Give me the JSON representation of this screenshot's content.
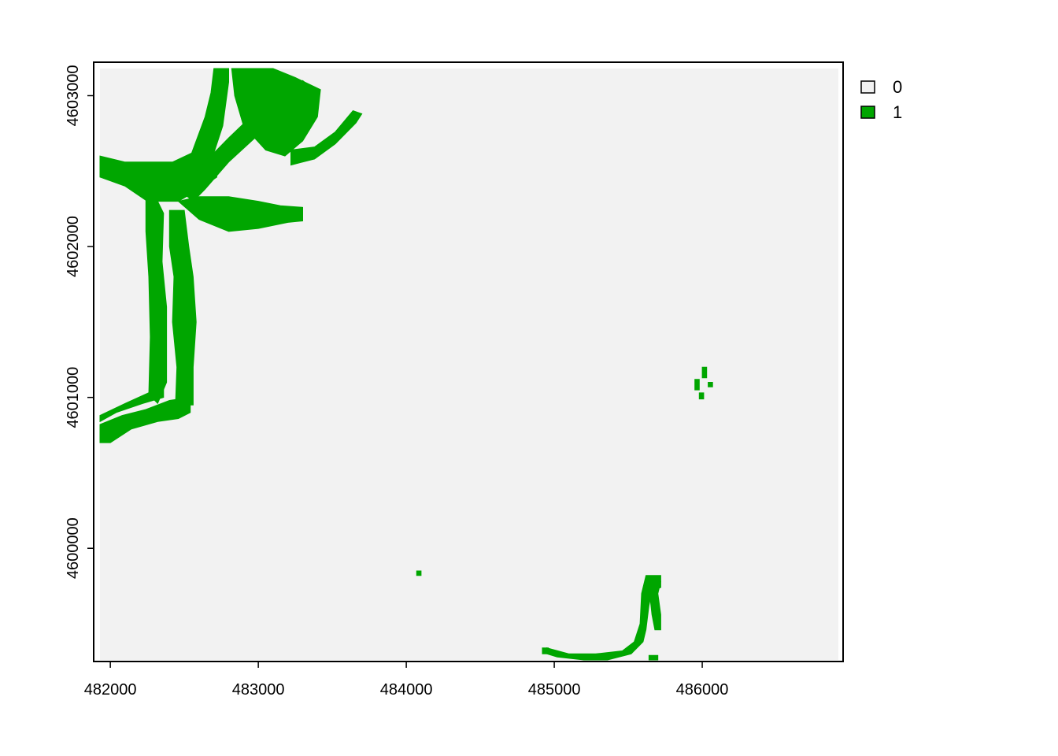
{
  "map": {
    "extent": {
      "xmin": 481930,
      "xmax": 486920,
      "ymin": 4599260,
      "ymax": 4603180
    },
    "cell_size": 20,
    "x_ticks": [
      {
        "value": 482000,
        "label": "482000"
      },
      {
        "value": 483000,
        "label": "483000"
      },
      {
        "value": 484000,
        "label": "484000"
      },
      {
        "value": 485000,
        "label": "485000"
      },
      {
        "value": 486000,
        "label": "486000"
      }
    ],
    "y_ticks": [
      {
        "value": 4600000,
        "label": "4600000"
      },
      {
        "value": 4601000,
        "label": "4601000"
      },
      {
        "value": 4602000,
        "label": "4602000"
      },
      {
        "value": 4603000,
        "label": "4603000"
      }
    ],
    "background_color": "#f2f2f2",
    "legend": {
      "position": "top-right",
      "items": [
        {
          "value": 0,
          "label": "0",
          "color": "#f2f2f2"
        },
        {
          "value": 1,
          "label": "1",
          "color": "#00a600"
        }
      ]
    },
    "class_1_color": "#00a600",
    "class_1_features": [
      {
        "name": "northern-branch-west",
        "polygon": [
          [
            481930,
            4602600
          ],
          [
            482100,
            4602560
          ],
          [
            482420,
            4602560
          ],
          [
            482550,
            4602620
          ],
          [
            482640,
            4602860
          ],
          [
            482680,
            4603020
          ],
          [
            482700,
            4603180
          ],
          [
            482800,
            4603180
          ],
          [
            482800,
            4603090
          ],
          [
            482760,
            4602800
          ],
          [
            482700,
            4602620
          ],
          [
            482720,
            4602460
          ],
          [
            482600,
            4602380
          ],
          [
            482460,
            4602300
          ],
          [
            482250,
            4602300
          ],
          [
            482100,
            4602400
          ],
          [
            481930,
            4602460
          ]
        ]
      },
      {
        "name": "northern-branch-center",
        "polygon": [
          [
            482460,
            4602380
          ],
          [
            482600,
            4602520
          ],
          [
            482800,
            4602720
          ],
          [
            482980,
            4602890
          ],
          [
            483150,
            4602990
          ],
          [
            483300,
            4603100
          ],
          [
            483400,
            4603020
          ],
          [
            483200,
            4602880
          ],
          [
            483000,
            4602740
          ],
          [
            482800,
            4602560
          ],
          [
            482640,
            4602380
          ],
          [
            482560,
            4602300
          ]
        ]
      },
      {
        "name": "northern-branch-east",
        "polygon": [
          [
            482820,
            4603180
          ],
          [
            483100,
            4603180
          ],
          [
            483250,
            4603120
          ],
          [
            483420,
            4603040
          ],
          [
            483400,
            4602860
          ],
          [
            483300,
            4602700
          ],
          [
            483180,
            4602600
          ],
          [
            483050,
            4602640
          ],
          [
            482900,
            4602800
          ],
          [
            482840,
            4603000
          ]
        ]
      },
      {
        "name": "eastern-arm",
        "polygon": [
          [
            483220,
            4602540
          ],
          [
            483380,
            4602580
          ],
          [
            483520,
            4602680
          ],
          [
            483660,
            4602820
          ],
          [
            483700,
            4602880
          ],
          [
            483640,
            4602900
          ],
          [
            483520,
            4602760
          ],
          [
            483380,
            4602660
          ],
          [
            483220,
            4602640
          ]
        ]
      },
      {
        "name": "southern-fork",
        "polygon": [
          [
            482460,
            4602300
          ],
          [
            482600,
            4602180
          ],
          [
            482800,
            4602100
          ],
          [
            483000,
            4602120
          ],
          [
            483200,
            4602160
          ],
          [
            483300,
            4602170
          ],
          [
            483300,
            4602260
          ],
          [
            483150,
            4602270
          ],
          [
            483000,
            4602300
          ],
          [
            482800,
            4602330
          ],
          [
            482600,
            4602330
          ]
        ]
      },
      {
        "name": "main-channel-west",
        "polygon": [
          [
            482240,
            4602320
          ],
          [
            482320,
            4602300
          ],
          [
            482360,
            4602220
          ],
          [
            482350,
            4601900
          ],
          [
            482380,
            4601600
          ],
          [
            482380,
            4601100
          ],
          [
            482320,
            4600960
          ],
          [
            482260,
            4601020
          ],
          [
            482270,
            4601400
          ],
          [
            482260,
            4601800
          ],
          [
            482240,
            4602100
          ]
        ]
      },
      {
        "name": "main-channel-east",
        "polygon": [
          [
            482400,
            4602240
          ],
          [
            482500,
            4602240
          ],
          [
            482530,
            4602000
          ],
          [
            482560,
            4601800
          ],
          [
            482580,
            4601500
          ],
          [
            482560,
            4601200
          ],
          [
            482560,
            4600950
          ],
          [
            482440,
            4600950
          ],
          [
            482450,
            4601200
          ],
          [
            482420,
            4601500
          ],
          [
            482430,
            4601800
          ],
          [
            482400,
            4602000
          ]
        ]
      },
      {
        "name": "southwest-tail",
        "polygon": [
          [
            481930,
            4600700
          ],
          [
            482000,
            4600700
          ],
          [
            482140,
            4600790
          ],
          [
            482320,
            4600840
          ],
          [
            482460,
            4600860
          ],
          [
            482540,
            4600900
          ],
          [
            482540,
            4601000
          ],
          [
            482400,
            4600980
          ],
          [
            482240,
            4600920
          ],
          [
            482080,
            4600880
          ],
          [
            481930,
            4600820
          ]
        ]
      },
      {
        "name": "southwest-tail-upper",
        "polygon": [
          [
            481930,
            4600880
          ],
          [
            482100,
            4600960
          ],
          [
            482280,
            4601040
          ],
          [
            482360,
            4601060
          ],
          [
            482360,
            4601000
          ],
          [
            482220,
            4600960
          ],
          [
            482040,
            4600900
          ],
          [
            481930,
            4600840
          ]
        ]
      },
      {
        "name": "south-river",
        "polygon": [
          [
            484950,
            4599340
          ],
          [
            485100,
            4599300
          ],
          [
            485280,
            4599300
          ],
          [
            485460,
            4599320
          ],
          [
            485540,
            4599380
          ],
          [
            485580,
            4599500
          ],
          [
            485590,
            4599700
          ],
          [
            485620,
            4599820
          ],
          [
            485720,
            4599820
          ],
          [
            485720,
            4599740
          ],
          [
            485660,
            4599720
          ],
          [
            485640,
            4599620
          ],
          [
            485620,
            4599460
          ],
          [
            485600,
            4599380
          ],
          [
            485520,
            4599300
          ],
          [
            485360,
            4599260
          ],
          [
            485200,
            4599260
          ],
          [
            485020,
            4599280
          ],
          [
            484950,
            4599300
          ]
        ]
      },
      {
        "name": "south-river-branch",
        "polygon": [
          [
            485640,
            4599740
          ],
          [
            485660,
            4599560
          ],
          [
            485680,
            4599460
          ],
          [
            485720,
            4599460
          ],
          [
            485720,
            4599560
          ],
          [
            485700,
            4599700
          ],
          [
            485720,
            4599780
          ],
          [
            485660,
            4599800
          ]
        ]
      },
      {
        "name": "dot-center",
        "polygon": [
          [
            484070,
            4599820
          ],
          [
            484100,
            4599820
          ],
          [
            484100,
            4599850
          ],
          [
            484070,
            4599850
          ]
        ]
      },
      {
        "name": "dot-east-1",
        "polygon": [
          [
            485950,
            4601050
          ],
          [
            485980,
            4601050
          ],
          [
            485980,
            4601120
          ],
          [
            485950,
            4601120
          ]
        ]
      },
      {
        "name": "dot-east-2",
        "polygon": [
          [
            486000,
            4601130
          ],
          [
            486030,
            4601130
          ],
          [
            486030,
            4601200
          ],
          [
            486000,
            4601200
          ]
        ]
      },
      {
        "name": "dot-east-3",
        "polygon": [
          [
            486040,
            4601070
          ],
          [
            486070,
            4601070
          ],
          [
            486070,
            4601100
          ],
          [
            486040,
            4601100
          ]
        ]
      },
      {
        "name": "dot-east-4",
        "polygon": [
          [
            485980,
            4600990
          ],
          [
            486010,
            4600990
          ],
          [
            486010,
            4601030
          ],
          [
            485980,
            4601030
          ]
        ]
      },
      {
        "name": "dot-south-1",
        "polygon": [
          [
            485640,
            4599260
          ],
          [
            485700,
            4599260
          ],
          [
            485700,
            4599290
          ],
          [
            485640,
            4599290
          ]
        ]
      },
      {
        "name": "dot-south-2",
        "polygon": [
          [
            484920,
            4599300
          ],
          [
            484960,
            4599300
          ],
          [
            484960,
            4599340
          ],
          [
            484920,
            4599340
          ]
        ]
      }
    ]
  }
}
